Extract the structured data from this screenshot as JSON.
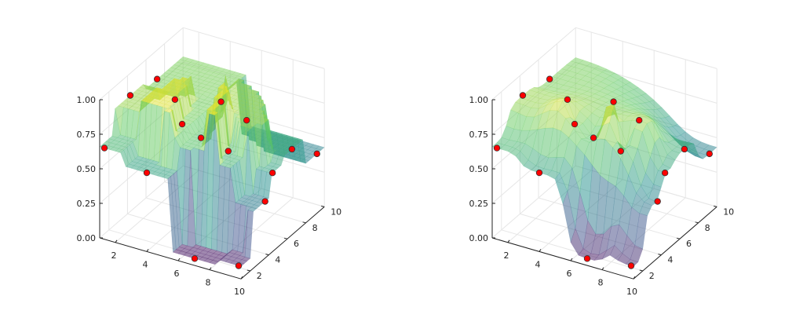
{
  "chart_data": [
    {
      "type": "surface3d",
      "surface_style": "nearest-neighbor (stepped)",
      "colormap": "viridis",
      "surface_opacity": 0.5,
      "marker_color": "#ff0000",
      "xlim": [
        1,
        10
      ],
      "ylim": [
        1,
        10
      ],
      "zlim": [
        0,
        1
      ],
      "x_ticks": [
        "2",
        "4",
        "6",
        "8",
        "10"
      ],
      "y_ticks": [
        "2",
        "4",
        "6",
        "8",
        "10"
      ],
      "z_ticks": [
        "0.00",
        "0.25",
        "0.50",
        "0.75",
        "1.00"
      ],
      "grid": true,
      "points": [
        [
          1.3,
          1,
          0.66
        ],
        [
          4,
          1,
          0.57
        ],
        [
          7.05,
          1,
          0.05
        ],
        [
          9.85,
          1,
          0.09
        ],
        [
          1,
          4.3,
          0.84
        ],
        [
          1,
          7.2,
          0.79
        ],
        [
          4.2,
          3.7,
          0.95
        ],
        [
          6.9,
          4.1,
          1.0
        ],
        [
          8,
          5,
          0.85
        ],
        [
          4.6,
          3.8,
          0.78
        ],
        [
          5.8,
          3.8,
          0.72
        ],
        [
          7.3,
          4.2,
          0.65
        ],
        [
          10,
          3.6,
          0.41
        ],
        [
          10,
          4.4,
          0.57
        ],
        [
          10,
          6.5,
          0.62
        ],
        [
          10,
          9.2,
          0.43
        ]
      ]
    },
    {
      "type": "surface3d",
      "surface_style": "interpolated (smooth)",
      "colormap": "viridis",
      "surface_opacity": 0.5,
      "marker_color": "#ff0000",
      "xlim": [
        1,
        10
      ],
      "ylim": [
        1,
        10
      ],
      "zlim": [
        0,
        1
      ],
      "x_ticks": [
        "2",
        "4",
        "6",
        "8",
        "10"
      ],
      "y_ticks": [
        "2",
        "4",
        "6",
        "8",
        "10"
      ],
      "z_ticks": [
        "0.00",
        "0.25",
        "0.50",
        "0.75",
        "1.00"
      ],
      "grid": true,
      "points": [
        [
          1.3,
          1,
          0.66
        ],
        [
          4,
          1,
          0.57
        ],
        [
          7.05,
          1,
          0.05
        ],
        [
          9.85,
          1,
          0.09
        ],
        [
          1,
          4.3,
          0.84
        ],
        [
          1,
          7.2,
          0.79
        ],
        [
          4.2,
          3.7,
          0.95
        ],
        [
          6.9,
          4.1,
          1.0
        ],
        [
          8,
          5,
          0.85
        ],
        [
          4.6,
          3.8,
          0.78
        ],
        [
          5.8,
          3.8,
          0.72
        ],
        [
          7.3,
          4.2,
          0.65
        ],
        [
          10,
          3.6,
          0.41
        ],
        [
          10,
          4.4,
          0.57
        ],
        [
          10,
          6.5,
          0.62
        ],
        [
          10,
          9.2,
          0.43
        ]
      ]
    }
  ]
}
